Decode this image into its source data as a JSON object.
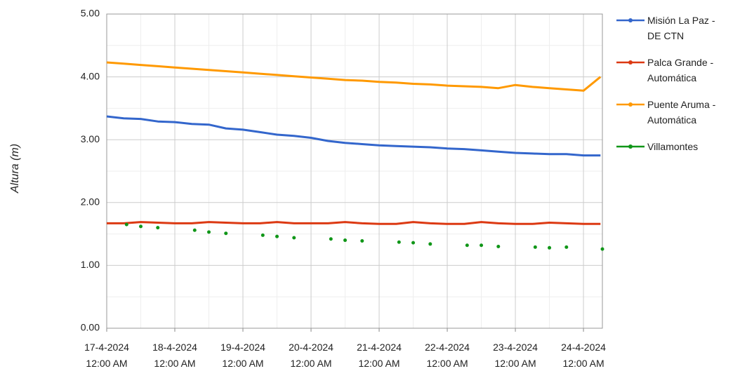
{
  "chart_data": {
    "type": "line",
    "y_label": "Altura (m)",
    "x": [
      "2024-04-17T00:00",
      "2024-04-17T06:00",
      "2024-04-17T12:00",
      "2024-04-17T18:00",
      "2024-04-18T00:00",
      "2024-04-18T06:00",
      "2024-04-18T12:00",
      "2024-04-18T18:00",
      "2024-04-19T00:00",
      "2024-04-19T06:00",
      "2024-04-19T12:00",
      "2024-04-19T18:00",
      "2024-04-20T00:00",
      "2024-04-20T06:00",
      "2024-04-20T12:00",
      "2024-04-20T18:00",
      "2024-04-21T00:00",
      "2024-04-21T06:00",
      "2024-04-21T12:00",
      "2024-04-21T18:00",
      "2024-04-22T00:00",
      "2024-04-22T06:00",
      "2024-04-22T12:00",
      "2024-04-22T18:00",
      "2024-04-23T00:00",
      "2024-04-23T06:00",
      "2024-04-23T12:00",
      "2024-04-23T18:00",
      "2024-04-24T00:00",
      "2024-04-24T06:00"
    ],
    "series": [
      {
        "name": "Misión La Paz - DE CTN",
        "color": "#3366cc",
        "values": [
          3.37,
          3.34,
          3.33,
          3.29,
          3.28,
          3.25,
          3.24,
          3.18,
          3.16,
          3.12,
          3.08,
          3.06,
          3.03,
          2.98,
          2.95,
          2.93,
          2.91,
          2.9,
          2.89,
          2.88,
          2.86,
          2.85,
          2.83,
          2.81,
          2.79,
          2.78,
          2.77,
          2.77,
          2.75,
          2.75
        ]
      },
      {
        "name": "Palca Grande - Automática",
        "color": "#dc3912",
        "values": [
          1.67,
          1.67,
          1.69,
          1.68,
          1.67,
          1.67,
          1.69,
          1.68,
          1.67,
          1.67,
          1.69,
          1.67,
          1.67,
          1.67,
          1.69,
          1.67,
          1.66,
          1.66,
          1.69,
          1.67,
          1.66,
          1.66,
          1.69,
          1.67,
          1.66,
          1.66,
          1.68,
          1.67,
          1.66,
          1.66
        ]
      },
      {
        "name": "Puente Aruma - Automática",
        "color": "#ff9900",
        "values": [
          4.23,
          4.21,
          4.19,
          4.17,
          4.15,
          4.13,
          4.11,
          4.09,
          4.07,
          4.05,
          4.03,
          4.01,
          3.99,
          3.97,
          3.95,
          3.94,
          3.92,
          3.91,
          3.89,
          3.88,
          3.86,
          3.85,
          3.84,
          3.82,
          3.87,
          3.84,
          3.82,
          3.8,
          3.78,
          4.0
        ]
      },
      {
        "name": "Villamontes",
        "color": "#109618",
        "mode": "markers",
        "x": [
          "2024-04-17T07:00",
          "2024-04-17T12:00",
          "2024-04-17T18:00",
          "2024-04-18T07:00",
          "2024-04-18T12:00",
          "2024-04-18T18:00",
          "2024-04-19T07:00",
          "2024-04-19T12:00",
          "2024-04-19T18:00",
          "2024-04-20T07:00",
          "2024-04-20T12:00",
          "2024-04-20T18:00",
          "2024-04-21T07:00",
          "2024-04-21T12:00",
          "2024-04-21T18:00",
          "2024-04-22T07:00",
          "2024-04-22T12:00",
          "2024-04-22T18:00",
          "2024-04-23T07:00",
          "2024-04-23T12:00",
          "2024-04-23T18:00",
          "2024-04-24T06:40"
        ],
        "values": [
          1.65,
          1.62,
          1.6,
          1.56,
          1.53,
          1.51,
          1.48,
          1.46,
          1.44,
          1.42,
          1.4,
          1.39,
          1.37,
          1.36,
          1.34,
          1.32,
          1.32,
          1.3,
          1.29,
          1.28,
          1.29,
          1.26
        ]
      }
    ],
    "xlim": [
      "2024-04-17T00:00",
      "2024-04-24T06:40"
    ],
    "xticks": [
      {
        "value": "2024-04-17T00:00",
        "label": [
          "17-4-2024",
          "12:00 AM"
        ]
      },
      {
        "value": "2024-04-18T00:00",
        "label": [
          "18-4-2024",
          "12:00 AM"
        ]
      },
      {
        "value": "2024-04-19T00:00",
        "label": [
          "19-4-2024",
          "12:00 AM"
        ]
      },
      {
        "value": "2024-04-20T00:00",
        "label": [
          "20-4-2024",
          "12:00 AM"
        ]
      },
      {
        "value": "2024-04-21T00:00",
        "label": [
          "21-4-2024",
          "12:00 AM"
        ]
      },
      {
        "value": "2024-04-22T00:00",
        "label": [
          "22-4-2024",
          "12:00 AM"
        ]
      },
      {
        "value": "2024-04-23T00:00",
        "label": [
          "23-4-2024",
          "12:00 AM"
        ]
      },
      {
        "value": "2024-04-24T00:00",
        "label": [
          "24-4-2024",
          "12:00 AM"
        ]
      }
    ],
    "ylim": [
      0,
      5
    ],
    "yticks": [
      {
        "value": 0,
        "label": "0.00"
      },
      {
        "value": 1,
        "label": "1.00"
      },
      {
        "value": 2,
        "label": "2.00"
      },
      {
        "value": 3,
        "label": "3.00"
      },
      {
        "value": 4,
        "label": "4.00"
      },
      {
        "value": 5,
        "label": "5.00"
      }
    ],
    "grid": true,
    "legend": "right"
  }
}
